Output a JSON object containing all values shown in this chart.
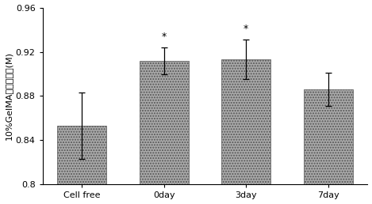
{
  "categories": [
    "Cell free",
    "0day",
    "3day",
    "7day"
  ],
  "values": [
    0.853,
    0.912,
    0.913,
    0.886
  ],
  "errors": [
    0.03,
    0.012,
    0.018,
    0.015
  ],
  "bar_color": "#aaaaaa",
  "bar_edgecolor": "#555555",
  "significance": [
    false,
    true,
    true,
    false
  ],
  "sig_symbol": "*",
  "ylabel": "10%GelMA平衡水含量(M)",
  "ylim": [
    0.8,
    0.96
  ],
  "yticks": [
    0.8,
    0.84,
    0.88,
    0.92,
    0.96
  ],
  "ytick_labels": [
    "0.8",
    "0.84",
    "0.88",
    "0.92",
    "0.96"
  ],
  "background_color": "#ffffff",
  "bar_width": 0.6,
  "capsize": 3
}
